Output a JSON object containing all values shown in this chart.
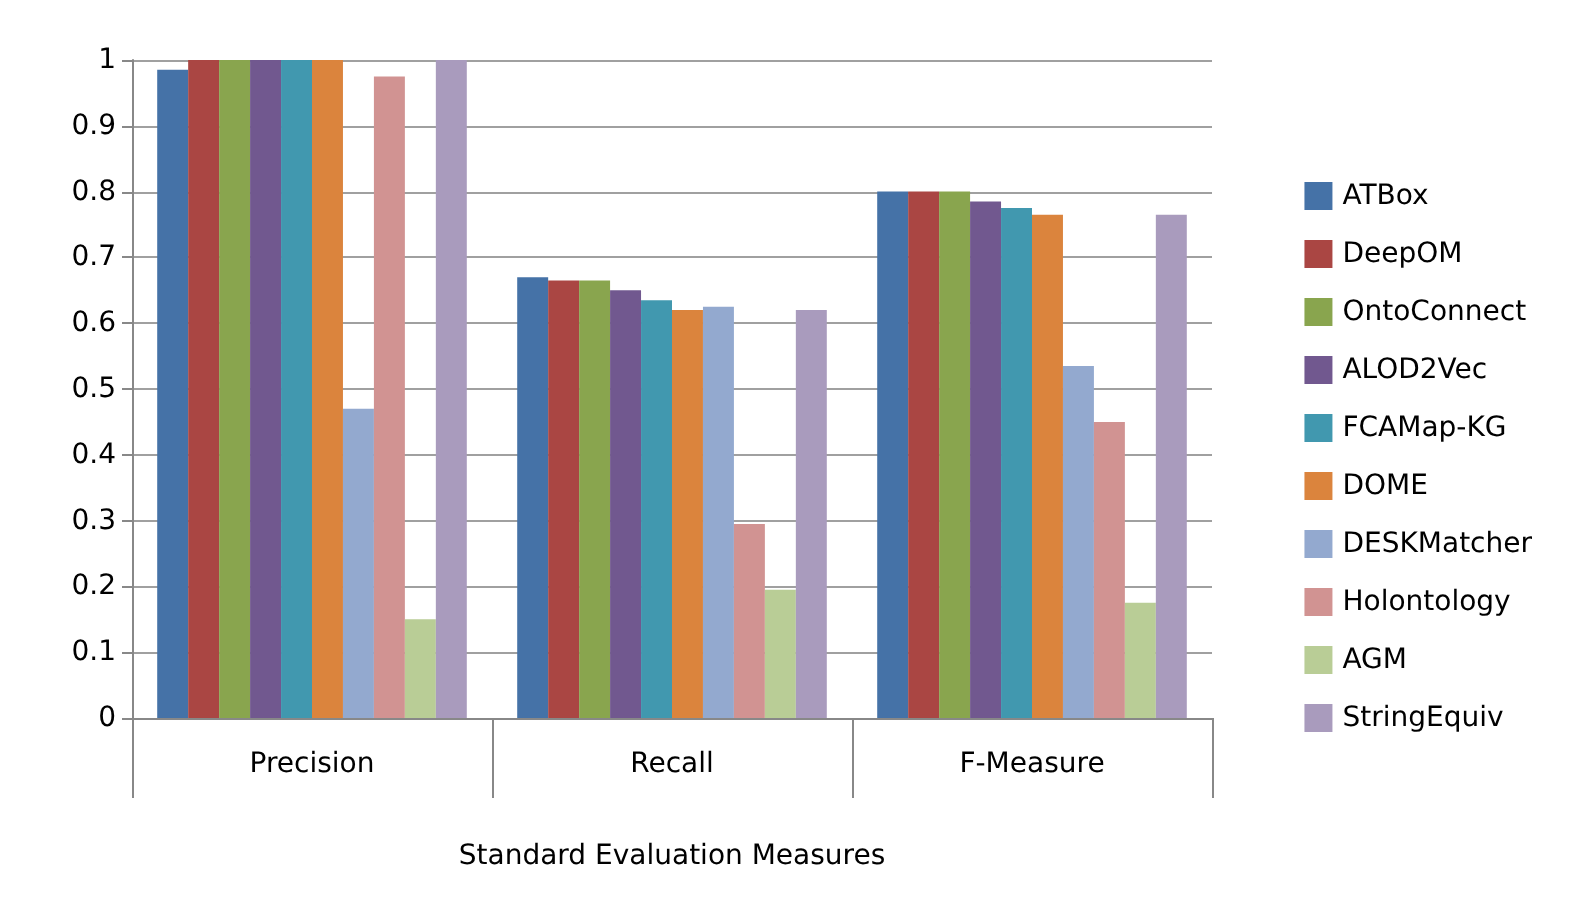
{
  "chart_data": {
    "type": "bar",
    "xlabel": "Standard Evaluation Measures",
    "categories": [
      "Precision",
      "Recall",
      "F-Measure"
    ],
    "series": [
      {
        "name": "ATBox",
        "color": "#4572a7",
        "values": [
          0.985,
          0.67,
          0.8
        ]
      },
      {
        "name": "DeepOM",
        "color": "#aa4643",
        "values": [
          1,
          0.665,
          0.8
        ]
      },
      {
        "name": "OntoConnect",
        "color": "#89a54e",
        "values": [
          1,
          0.665,
          0.8
        ]
      },
      {
        "name": "ALOD2Vec",
        "color": "#71588f",
        "values": [
          1,
          0.65,
          0.785
        ]
      },
      {
        "name": "FCAMap-KG",
        "color": "#4198af",
        "values": [
          1,
          0.635,
          0.775
        ]
      },
      {
        "name": "DOME",
        "color": "#db843d",
        "values": [
          1,
          0.62,
          0.765
        ]
      },
      {
        "name": "DESKMatcher",
        "color": "#93a9cf",
        "values": [
          0.47,
          0.625,
          0.535
        ]
      },
      {
        "name": "Holontology",
        "color": "#d19392",
        "values": [
          0.975,
          0.295,
          0.45
        ]
      },
      {
        "name": "AGM",
        "color": "#b9cd96",
        "values": [
          0.15,
          0.195,
          0.175
        ]
      },
      {
        "name": "StringEquiv",
        "color": "#a99bbd",
        "values": [
          1,
          0.62,
          0.765
        ]
      }
    ],
    "ylim": [
      0,
      1
    ],
    "yticks": [
      0,
      0.1,
      0.2,
      0.3,
      0.4,
      0.5,
      0.6,
      0.7,
      0.8,
      0.9,
      1
    ],
    "grid": "y",
    "legend": "right"
  }
}
